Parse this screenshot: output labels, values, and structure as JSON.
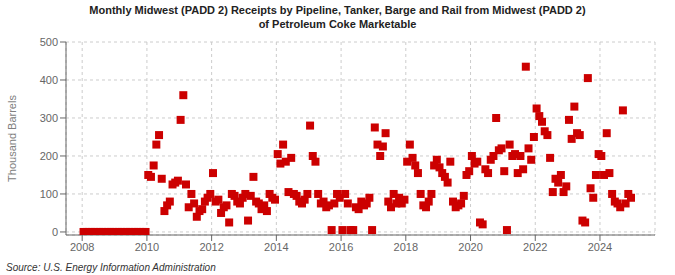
{
  "chart_data": {
    "type": "scatter",
    "title": "Monthly Midwest (PADD 2) Receipts by Pipeline, Tanker, Barge and Rail from Midwest (PADD 2)\nof Petroleum Coke Marketable",
    "ylabel": "Thousand Barrels",
    "source": "Source: U.S. Energy Information Administration",
    "color": "#cc0000",
    "marker": "square",
    "grid": true,
    "xlim": [
      2007.5,
      2025.7
    ],
    "ylim": [
      -8,
      500
    ],
    "xticks": [
      2008,
      2010,
      2012,
      2014,
      2016,
      2018,
      2020,
      2022,
      2024
    ],
    "yticks": [
      0,
      100,
      200,
      300,
      400,
      500
    ],
    "x": [
      2008.0416666666667,
      2008.125,
      2008.2083333333333,
      2008.2916666666667,
      2008.375,
      2008.4583333333333,
      2008.5416666666667,
      2008.625,
      2008.7083333333333,
      2008.7916666666667,
      2008.875,
      2008.9583333333333,
      2009.0416666666667,
      2009.125,
      2009.2083333333333,
      2009.2916666666667,
      2009.375,
      2009.4583333333333,
      2009.5416666666667,
      2009.625,
      2009.7083333333333,
      2009.7916666666667,
      2009.875,
      2009.9583333333333,
      2010.0416666666667,
      2010.125,
      2010.2083333333333,
      2010.2916666666667,
      2010.375,
      2010.4583333333333,
      2010.5416666666667,
      2010.625,
      2010.7083333333333,
      2010.7916666666667,
      2010.875,
      2010.9583333333333,
      2011.0416666666667,
      2011.125,
      2011.2083333333333,
      2011.2916666666667,
      2011.375,
      2011.4583333333333,
      2011.5416666666667,
      2011.625,
      2011.7083333333333,
      2011.7916666666667,
      2011.875,
      2011.9583333333333,
      2012.0416666666667,
      2012.125,
      2012.2083333333333,
      2012.2916666666667,
      2012.375,
      2012.4583333333333,
      2012.5416666666667,
      2012.625,
      2012.7083333333333,
      2012.7916666666667,
      2012.875,
      2012.9583333333333,
      2013.0416666666667,
      2013.125,
      2013.2083333333333,
      2013.2916666666667,
      2013.375,
      2013.4583333333333,
      2013.5416666666667,
      2013.625,
      2013.7083333333333,
      2013.7916666666667,
      2013.875,
      2013.9583333333333,
      2014.0416666666667,
      2014.125,
      2014.2083333333333,
      2014.2916666666667,
      2014.375,
      2014.4583333333333,
      2014.5416666666667,
      2014.625,
      2014.7083333333333,
      2014.7916666666667,
      2014.875,
      2014.9583333333333,
      2015.0416666666667,
      2015.125,
      2015.2083333333333,
      2015.2916666666667,
      2015.375,
      2015.4583333333333,
      2015.5416666666667,
      2015.625,
      2015.7083333333333,
      2015.7916666666667,
      2015.875,
      2015.9583333333333,
      2016.0416666666667,
      2016.125,
      2016.2083333333333,
      2016.2916666666667,
      2016.375,
      2016.4583333333333,
      2016.5416666666667,
      2016.625,
      2016.7083333333333,
      2016.7916666666667,
      2016.875,
      2016.9583333333333,
      2017.0416666666667,
      2017.125,
      2017.2083333333333,
      2017.2916666666667,
      2017.375,
      2017.4583333333333,
      2017.5416666666667,
      2017.625,
      2017.7083333333333,
      2017.7916666666667,
      2017.875,
      2017.9583333333333,
      2018.0416666666667,
      2018.125,
      2018.2083333333333,
      2018.2916666666667,
      2018.375,
      2018.4583333333333,
      2018.5416666666667,
      2018.625,
      2018.7083333333333,
      2018.7916666666667,
      2018.875,
      2018.9583333333333,
      2019.0416666666667,
      2019.125,
      2019.2083333333333,
      2019.2916666666667,
      2019.375,
      2019.4583333333333,
      2019.5416666666667,
      2019.625,
      2019.7083333333333,
      2019.7916666666667,
      2019.875,
      2019.9583333333333,
      2020.0416666666667,
      2020.125,
      2020.2083333333333,
      2020.2916666666667,
      2020.375,
      2020.4583333333333,
      2020.5416666666667,
      2020.625,
      2020.7083333333333,
      2020.7916666666667,
      2020.875,
      2020.9583333333333,
      2021.0416666666667,
      2021.125,
      2021.2083333333333,
      2021.2916666666667,
      2021.375,
      2021.4583333333333,
      2021.5416666666667,
      2021.625,
      2021.7083333333333,
      2021.7916666666667,
      2021.875,
      2021.9583333333333,
      2022.0416666666667,
      2022.125,
      2022.2083333333333,
      2022.2916666666667,
      2022.375,
      2022.4583333333333,
      2022.5416666666667,
      2022.625,
      2022.7083333333333,
      2022.7916666666667,
      2022.875,
      2022.9583333333333,
      2023.0416666666667,
      2023.125,
      2023.2083333333333,
      2023.2916666666667,
      2023.375,
      2023.4583333333333,
      2023.5416666666667,
      2023.625,
      2023.7083333333333,
      2023.7916666666667,
      2023.875,
      2023.9583333333333,
      2024.0416666666667,
      2024.125,
      2024.2083333333333,
      2024.2916666666667,
      2024.375,
      2024.4583333333333,
      2024.5416666666667,
      2024.625,
      2024.7083333333333,
      2024.7916666666667,
      2024.875,
      2024.9583333333333
    ],
    "values": [
      0,
      0,
      0,
      0,
      0,
      0,
      0,
      0,
      0,
      0,
      0,
      0,
      0,
      0,
      0,
      0,
      0,
      0,
      0,
      0,
      0,
      0,
      0,
      0,
      150,
      145,
      175,
      230,
      255,
      140,
      55,
      70,
      80,
      125,
      130,
      135,
      295,
      360,
      125,
      65,
      100,
      75,
      40,
      55,
      60,
      80,
      90,
      100,
      155,
      80,
      85,
      50,
      65,
      70,
      25,
      100,
      95,
      80,
      75,
      90,
      100,
      30,
      95,
      145,
      80,
      75,
      60,
      70,
      55,
      100,
      90,
      85,
      205,
      180,
      230,
      185,
      105,
      195,
      100,
      95,
      80,
      75,
      85,
      100,
      280,
      200,
      185,
      100,
      75,
      80,
      65,
      70,
      5,
      75,
      100,
      90,
      5,
      100,
      75,
      5,
      5,
      65,
      60,
      80,
      70,
      75,
      90,
      5,
      275,
      230,
      200,
      225,
      260,
      80,
      65,
      100,
      75,
      90,
      75,
      85,
      185,
      230,
      195,
      175,
      155,
      100,
      70,
      65,
      80,
      100,
      175,
      190,
      170,
      155,
      145,
      130,
      185,
      80,
      65,
      70,
      75,
      95,
      150,
      160,
      200,
      180,
      185,
      25,
      20,
      165,
      155,
      190,
      200,
      300,
      215,
      220,
      160,
      5,
      230,
      200,
      205,
      155,
      200,
      165,
      435,
      220,
      190,
      250,
      325,
      305,
      290,
      265,
      255,
      195,
      105,
      140,
      130,
      150,
      105,
      120,
      295,
      245,
      330,
      260,
      255,
      30,
      25,
      405,
      115,
      90,
      150,
      205,
      200,
      150,
      260,
      155,
      100,
      80,
      75,
      65,
      320,
      75,
      100,
      90
    ]
  }
}
